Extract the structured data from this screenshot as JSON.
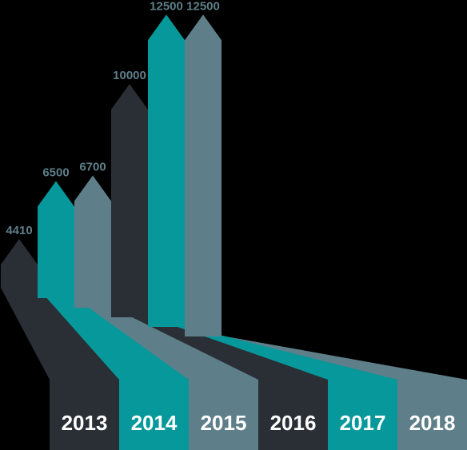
{
  "chart_data": {
    "type": "bar",
    "title": "",
    "xlabel": "",
    "ylabel": "",
    "categories": [
      "2013",
      "2014",
      "2015",
      "2016",
      "2017",
      "2018"
    ],
    "values": [
      4410,
      6500,
      6700,
      10000,
      12500,
      12500
    ],
    "value_labels": [
      "4410",
      "6500",
      "6700",
      "10000",
      "12500",
      "12500"
    ],
    "colors": [
      "#2a2e35",
      "#06989a",
      "#5e7f89",
      "#2a2e35",
      "#06989a",
      "#5e7f89"
    ],
    "label_color": "#5e7f89"
  }
}
